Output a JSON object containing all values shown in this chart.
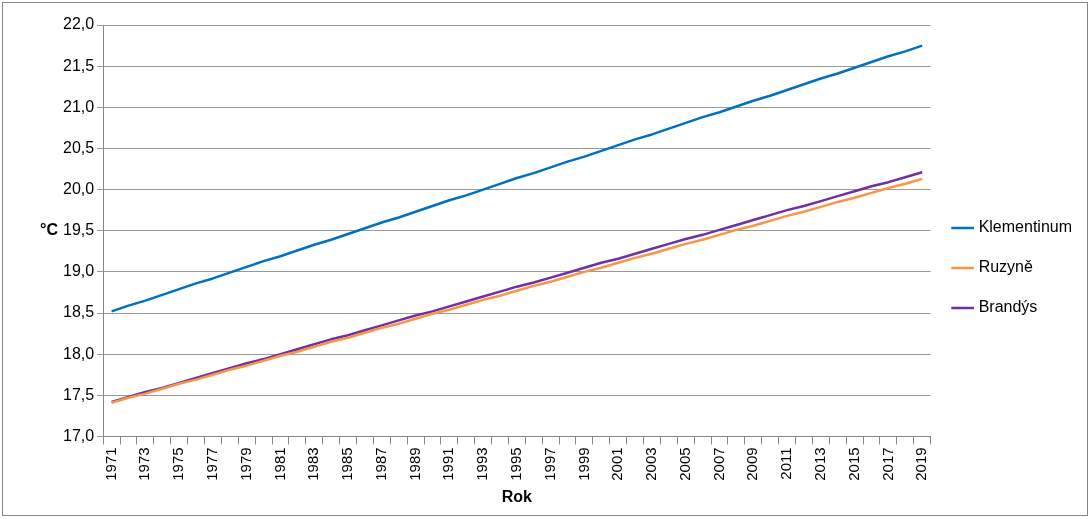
{
  "chart_data": {
    "type": "line",
    "xlabel": "Rok",
    "ylabel": "°C",
    "categories": [
      "1971",
      null,
      "1973",
      null,
      "1975",
      null,
      "1977",
      null,
      "1979",
      null,
      "1981",
      null,
      "1983",
      null,
      "1985",
      null,
      "1987",
      null,
      "1989",
      null,
      "1991",
      null,
      "1993",
      null,
      "1995",
      null,
      "1997",
      null,
      "1999",
      null,
      "2001",
      null,
      "2003",
      null,
      "2005",
      null,
      "2007",
      null,
      "2009",
      null,
      "2011",
      null,
      "2013",
      null,
      "2015",
      null,
      "2017",
      null,
      "2019"
    ],
    "series": [
      {
        "name": "Klementinum",
        "color": "#0070c0",
        "values": [
          18.52,
          18.59,
          18.65,
          18.72,
          18.79,
          18.86,
          18.92,
          18.99,
          19.06,
          19.13,
          19.19,
          19.26,
          19.33,
          19.39,
          19.46,
          19.53,
          19.6,
          19.66,
          19.73,
          19.8,
          19.87,
          19.93,
          20.0,
          20.07,
          20.14,
          20.2,
          20.27,
          20.34,
          20.4,
          20.47,
          20.54,
          20.61,
          20.67,
          20.74,
          20.81,
          20.88,
          20.94,
          21.01,
          21.08,
          21.14,
          21.21,
          21.28,
          21.35,
          21.41,
          21.48,
          21.55,
          21.62,
          21.68,
          21.75
        ]
      },
      {
        "name": "Ruzyně",
        "color": "#f79646",
        "values": [
          17.41,
          17.47,
          17.52,
          17.58,
          17.64,
          17.69,
          17.75,
          17.81,
          17.86,
          17.92,
          17.98,
          18.03,
          18.09,
          18.15,
          18.2,
          18.26,
          18.32,
          18.37,
          18.43,
          18.49,
          18.54,
          18.6,
          18.66,
          18.71,
          18.77,
          18.83,
          18.88,
          18.94,
          19.0,
          19.05,
          19.11,
          19.17,
          19.22,
          19.28,
          19.34,
          19.39,
          19.45,
          19.51,
          19.56,
          19.62,
          19.68,
          19.73,
          19.79,
          19.85,
          19.9,
          19.96,
          20.02,
          20.07,
          20.13
        ]
      },
      {
        "name": "Brandýs",
        "color": "#7030a0",
        "values": [
          17.42,
          17.48,
          17.54,
          17.59,
          17.65,
          17.71,
          17.77,
          17.83,
          17.89,
          17.94,
          18.0,
          18.06,
          18.12,
          18.18,
          18.23,
          18.29,
          18.35,
          18.41,
          18.47,
          18.52,
          18.58,
          18.64,
          18.7,
          18.76,
          18.82,
          18.87,
          18.93,
          18.99,
          19.05,
          19.11,
          19.16,
          19.22,
          19.28,
          19.34,
          19.4,
          19.45,
          19.51,
          19.57,
          19.63,
          19.69,
          19.75,
          19.8,
          19.86,
          19.92,
          19.98,
          20.04,
          20.09,
          20.15,
          20.21
        ]
      }
    ],
    "ylim": [
      17,
      22
    ],
    "yticks": [
      {
        "value": 17,
        "label": "17,0"
      },
      {
        "value": 17.5,
        "label": "17,5"
      },
      {
        "value": 18,
        "label": "18,0"
      },
      {
        "value": 18.5,
        "label": "18,5"
      },
      {
        "value": 19,
        "label": "19,0"
      },
      {
        "value": 19.5,
        "label": "19,5"
      },
      {
        "value": 20,
        "label": "20,0"
      },
      {
        "value": 20.5,
        "label": "20,5"
      },
      {
        "value": 21,
        "label": "21,0"
      },
      {
        "value": 21.5,
        "label": "21,5"
      },
      {
        "value": 22,
        "label": "22,0"
      }
    ],
    "grid": "y",
    "legend": "right",
    "marker": "none",
    "line_style": "solid"
  }
}
